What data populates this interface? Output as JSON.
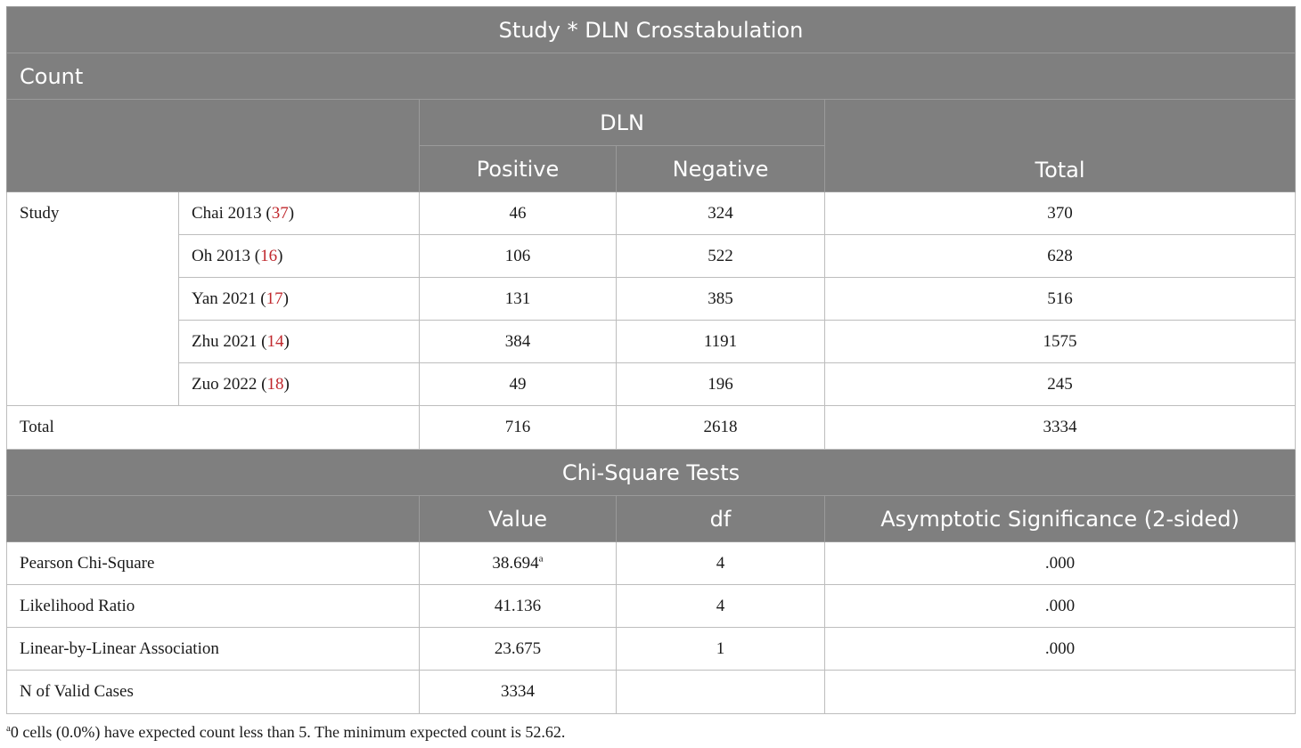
{
  "crosstab": {
    "title": "Study * DLN Crosstabulation",
    "subtitle": "Count",
    "group_header": "DLN",
    "col_positive": "Positive",
    "col_negative": "Negative",
    "col_total": "Total",
    "row_group_label": "Study",
    "rows": [
      {
        "name": "Chai 2013 (",
        "ref": "37",
        "close": ")",
        "positive": "46",
        "negative": "324",
        "total": "370"
      },
      {
        "name": "Oh 2013 (",
        "ref": "16",
        "close": ")",
        "positive": "106",
        "negative": "522",
        "total": "628"
      },
      {
        "name": "Yan 2021 (",
        "ref": "17",
        "close": ")",
        "positive": "131",
        "negative": "385",
        "total": "516"
      },
      {
        "name": "Zhu 2021 (",
        "ref": "14",
        "close": ")",
        "positive": "384",
        "negative": "1191",
        "total": "1575"
      },
      {
        "name": "Zuo 2022 (",
        "ref": "18",
        "close": ")",
        "positive": "49",
        "negative": "196",
        "total": "245"
      }
    ],
    "total_row": {
      "label": "Total",
      "positive": "716",
      "negative": "2618",
      "total": "3334"
    }
  },
  "chisq": {
    "title": "Chi-Square Tests",
    "col_value": "Value",
    "col_df": "df",
    "col_sig": "Asymptotic Significance (2-sided)",
    "rows": [
      {
        "label": "Pearson Chi-Square",
        "value": "38.694",
        "sup": "a",
        "df": "4",
        "sig": ".000"
      },
      {
        "label": "Likelihood Ratio",
        "value": "41.136",
        "sup": "",
        "df": "4",
        "sig": ".000"
      },
      {
        "label": "Linear-by-Linear Association",
        "value": "23.675",
        "sup": "",
        "df": "1",
        "sig": ".000"
      },
      {
        "label": "N of Valid Cases",
        "value": "3334",
        "sup": "",
        "df": "",
        "sig": ""
      }
    ]
  },
  "footnote": {
    "marker": "a",
    "text": "0 cells (0.0%) have expected count less than 5. The minimum expected count is 52.62."
  }
}
